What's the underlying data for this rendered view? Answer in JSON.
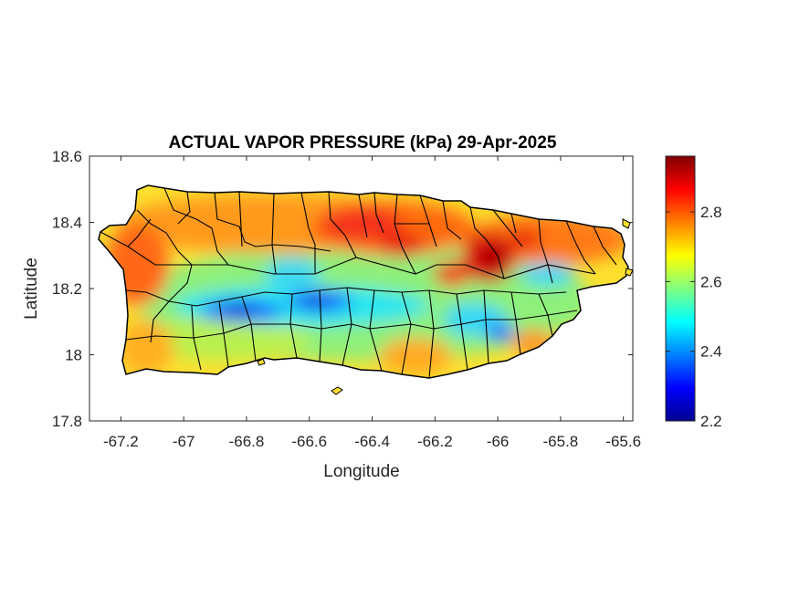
{
  "chart_data": {
    "type": "heatmap",
    "title": "ACTUAL VAPOR PRESSURE (kPa) 29-Apr-2025",
    "xlabel": "Longitude",
    "ylabel": "Latitude",
    "xlim": [
      -67.3,
      -65.57
    ],
    "ylim": [
      17.8,
      18.6
    ],
    "x_ticks": [
      "-67.2",
      "-67",
      "-66.8",
      "-66.6",
      "-66.4",
      "-66.2",
      "-66",
      "-65.8",
      "-65.6"
    ],
    "y_ticks": [
      "17.8",
      "18",
      "18.2",
      "18.4",
      "18.6"
    ],
    "colorbar": {
      "colormap": "jet",
      "min": 2.2,
      "max": 2.96,
      "ticks": [
        "2.2",
        "2.4",
        "2.6",
        "2.8"
      ]
    },
    "notable_regions": [
      {
        "lon": -66.85,
        "lat": 18.14,
        "value": 2.25
      },
      {
        "lon": -66.6,
        "lat": 18.16,
        "value": 2.3
      },
      {
        "lon": -66.05,
        "lat": 18.07,
        "value": 2.35
      },
      {
        "lon": -66.03,
        "lat": 18.29,
        "value": 2.95
      },
      {
        "lon": -66.35,
        "lat": 18.34,
        "value": 2.88
      },
      {
        "lon": -67.15,
        "lat": 18.22,
        "value": 2.8
      }
    ]
  }
}
